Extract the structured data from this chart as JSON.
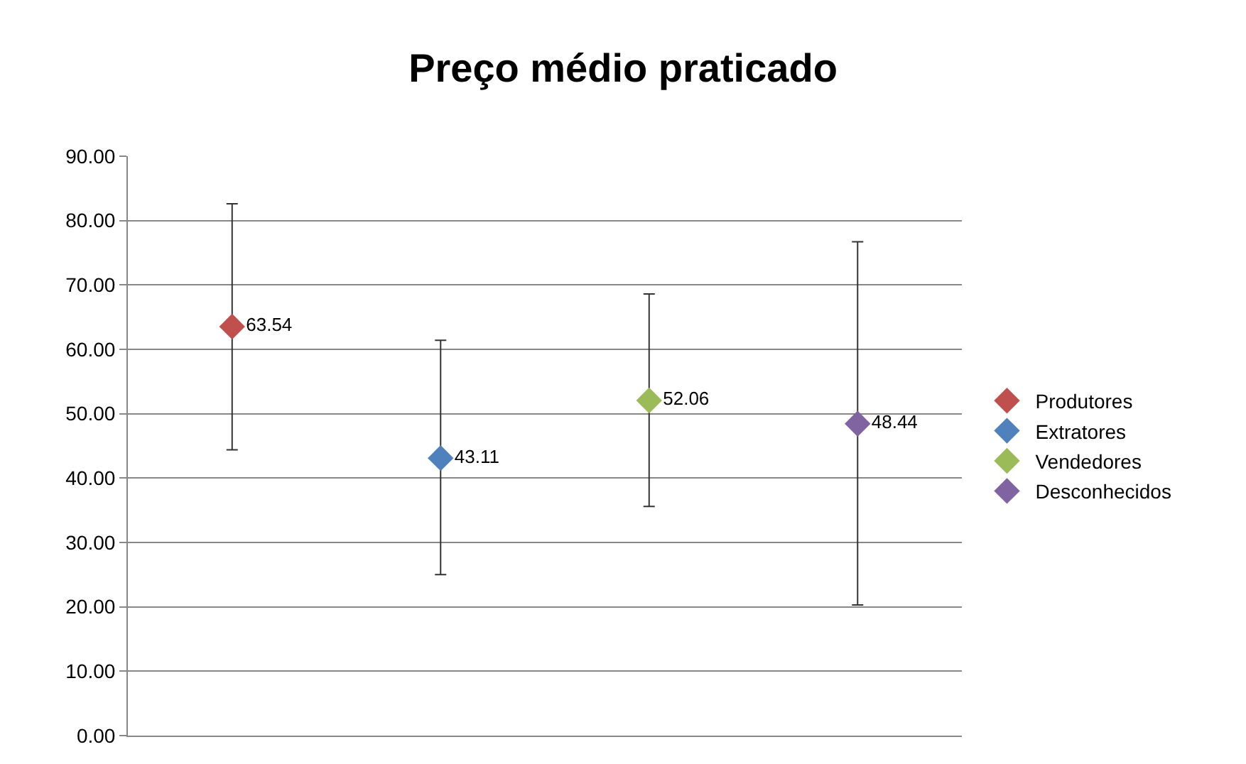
{
  "chart_data": {
    "type": "scatter",
    "title": "Preço médio praticado",
    "categories": [
      null,
      null,
      null,
      null
    ],
    "series": [
      {
        "name": "Produtores",
        "color": "#c0504d",
        "values": [
          63.54,
          null,
          null,
          null
        ],
        "errors": [
          [
            44.4,
            82.6
          ],
          null,
          null,
          null
        ]
      },
      {
        "name": "Extratores",
        "color": "#4f81bd",
        "values": [
          null,
          43.11,
          null,
          null
        ],
        "errors": [
          null,
          [
            25.0,
            61.4
          ],
          null,
          null
        ]
      },
      {
        "name": "Vendedores",
        "color": "#9bbb59",
        "values": [
          null,
          null,
          52.06,
          null
        ],
        "errors": [
          null,
          null,
          [
            35.6,
            68.6
          ],
          null
        ]
      },
      {
        "name": "Desconhecidos",
        "color": "#8064a2",
        "values": [
          null,
          null,
          null,
          48.44
        ],
        "errors": [
          null,
          null,
          null,
          [
            20.3,
            76.7
          ]
        ]
      }
    ],
    "ylim": [
      0,
      90
    ],
    "yticks": [
      {
        "value": 0,
        "label": "0.00"
      },
      {
        "value": 10,
        "label": "10.00"
      },
      {
        "value": 20,
        "label": "20.00"
      },
      {
        "value": 30,
        "label": "30.00"
      },
      {
        "value": 40,
        "label": "40.00"
      },
      {
        "value": 50,
        "label": "50.00"
      },
      {
        "value": 60,
        "label": "60.00"
      },
      {
        "value": 70,
        "label": "70.00"
      },
      {
        "value": 80,
        "label": "80.00"
      },
      {
        "value": 90,
        "label": "90.00"
      }
    ],
    "grid": "y",
    "legend": "right",
    "marker": "diamond",
    "data_labels": true
  }
}
